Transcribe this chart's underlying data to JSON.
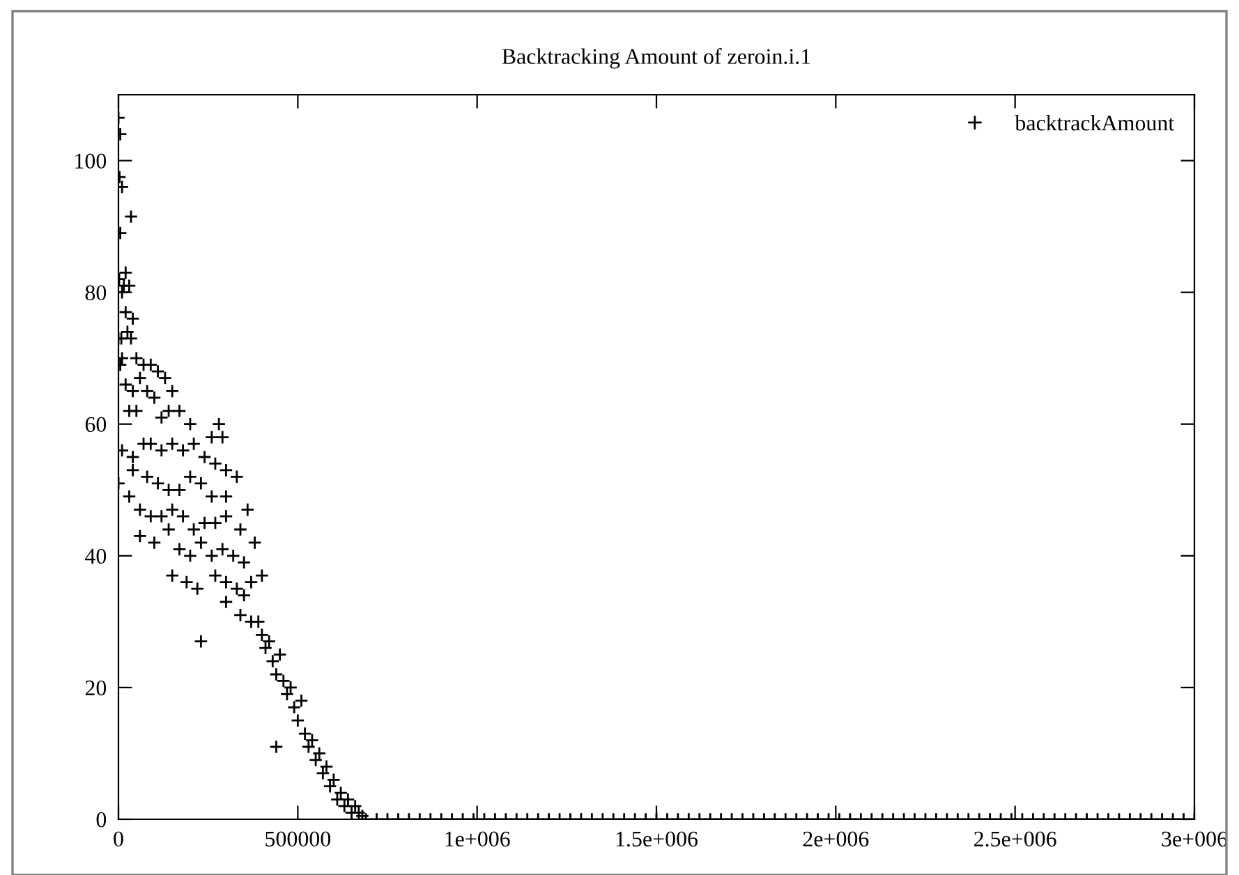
{
  "chart_data": {
    "type": "scatter",
    "title": "Backtracking Amount of zeroin.i.1",
    "xlim": [
      0,
      3000000
    ],
    "ylim": [
      0,
      110
    ],
    "xticks": [
      0,
      500000,
      {
        "value": 1000000,
        "label": "1e+006"
      },
      {
        "value": 1500000,
        "label": "1.5e+006"
      },
      {
        "value": 2000000,
        "label": "2e+006"
      },
      {
        "value": 2500000,
        "label": "2.5e+006"
      },
      {
        "value": 3000000,
        "label": "3e+006"
      }
    ],
    "yticks": [
      0,
      20,
      40,
      60,
      80,
      100
    ],
    "grid": false,
    "legend": "top right",
    "marker": "cross",
    "series": [
      {
        "name": "backtrackAmount",
        "color": "#000000",
        "x": [
          0,
          5000,
          3000,
          10000,
          5000,
          35000,
          2000,
          20000,
          15000,
          30000,
          10000,
          20000,
          40000,
          8000,
          25000,
          35000,
          0,
          10000,
          5000,
          50000,
          70000,
          90000,
          110000,
          130000,
          20000,
          40000,
          60000,
          80000,
          100000,
          150000,
          140000,
          30000,
          50000,
          120000,
          170000,
          200000,
          280000,
          290000,
          260000,
          10000,
          40000,
          70000,
          90000,
          120000,
          150000,
          180000,
          210000,
          240000,
          270000,
          300000,
          40000,
          80000,
          110000,
          140000,
          170000,
          200000,
          230000,
          260000,
          300000,
          330000,
          0,
          30000,
          60000,
          90000,
          120000,
          150000,
          180000,
          210000,
          240000,
          270000,
          300000,
          340000,
          360000,
          60000,
          100000,
          140000,
          170000,
          200000,
          230000,
          260000,
          290000,
          320000,
          350000,
          380000,
          150000,
          190000,
          220000,
          270000,
          300000,
          330000,
          350000,
          370000,
          400000,
          230000,
          300000,
          340000,
          370000,
          390000,
          400000,
          410000,
          420000,
          430000,
          440000,
          450000,
          460000,
          470000,
          480000,
          490000,
          500000,
          510000,
          520000,
          530000,
          540000,
          550000,
          560000,
          570000,
          580000,
          590000,
          600000,
          610000,
          620000,
          630000,
          640000,
          650000,
          660000,
          670000,
          680000,
          440000,
          690000,
          720000,
          750000,
          780000,
          810000,
          840000,
          870000,
          900000,
          930000,
          960000,
          990000,
          1020000,
          1050000,
          1080000,
          1110000,
          1140000,
          1170000,
          1200000,
          1230000,
          1260000,
          1290000,
          1320000,
          1350000,
          1380000,
          1410000,
          1440000,
          1470000,
          1500000,
          1530000,
          1560000,
          1590000,
          1620000,
          1650000,
          1680000,
          1710000,
          1740000,
          1770000,
          1800000,
          1830000,
          1860000,
          1890000,
          1920000,
          1950000,
          1980000,
          2010000,
          2040000,
          2070000,
          2100000,
          2130000,
          2160000,
          2190000,
          2220000,
          2250000,
          2280000,
          2310000,
          2340000,
          2370000,
          2400000,
          2430000,
          2460000,
          2490000,
          2520000,
          2550000,
          2580000,
          2610000,
          2640000,
          2670000,
          2700000,
          2730000,
          2760000,
          2790000,
          2820000,
          2850000,
          2880000,
          2910000,
          2940000,
          2970000,
          3000000
        ],
        "values": [
          106.5,
          104,
          97.5,
          96,
          89,
          91.5,
          82,
          83,
          81,
          81,
          80,
          77,
          76,
          73,
          74,
          73,
          73,
          70,
          69,
          70,
          69,
          69,
          68,
          67,
          66,
          65,
          67,
          65,
          64,
          65,
          62,
          62,
          62,
          61,
          62,
          60,
          60,
          58,
          58,
          56,
          55,
          57,
          57,
          56,
          57,
          56,
          57,
          55,
          54,
          53,
          53,
          52,
          51,
          50,
          50,
          52,
          51,
          49,
          49,
          52,
          51,
          49,
          47,
          46,
          46,
          47,
          46,
          44,
          45,
          45,
          46,
          44,
          47,
          43,
          42,
          44,
          41,
          40,
          42,
          40,
          41,
          40,
          39,
          42,
          37,
          36,
          35,
          37,
          36,
          35,
          34,
          36,
          37,
          27,
          33,
          31,
          30,
          30,
          28,
          26,
          27,
          24,
          22,
          25,
          21,
          19,
          20,
          17,
          15,
          18,
          13,
          11,
          12,
          9,
          10,
          7,
          8,
          5,
          6,
          3,
          4,
          2,
          3,
          1,
          2,
          1,
          0.5,
          11,
          0,
          0,
          0,
          0,
          0,
          0,
          0,
          0,
          0,
          0,
          0,
          0,
          0,
          0,
          0,
          0,
          0,
          0,
          0,
          0,
          0,
          0,
          0,
          0,
          0,
          0,
          0,
          0,
          0,
          0,
          0,
          0,
          0,
          0,
          0,
          0,
          0,
          0,
          0,
          0,
          0,
          0,
          0,
          0,
          0,
          0,
          0,
          0,
          0,
          0,
          0,
          0,
          0,
          0,
          0,
          0,
          0,
          0,
          0,
          0,
          0,
          0,
          0,
          0,
          0,
          0,
          0,
          0,
          0,
          0,
          0,
          0,
          0,
          0,
          0,
          0,
          0,
          0
        ]
      }
    ]
  }
}
